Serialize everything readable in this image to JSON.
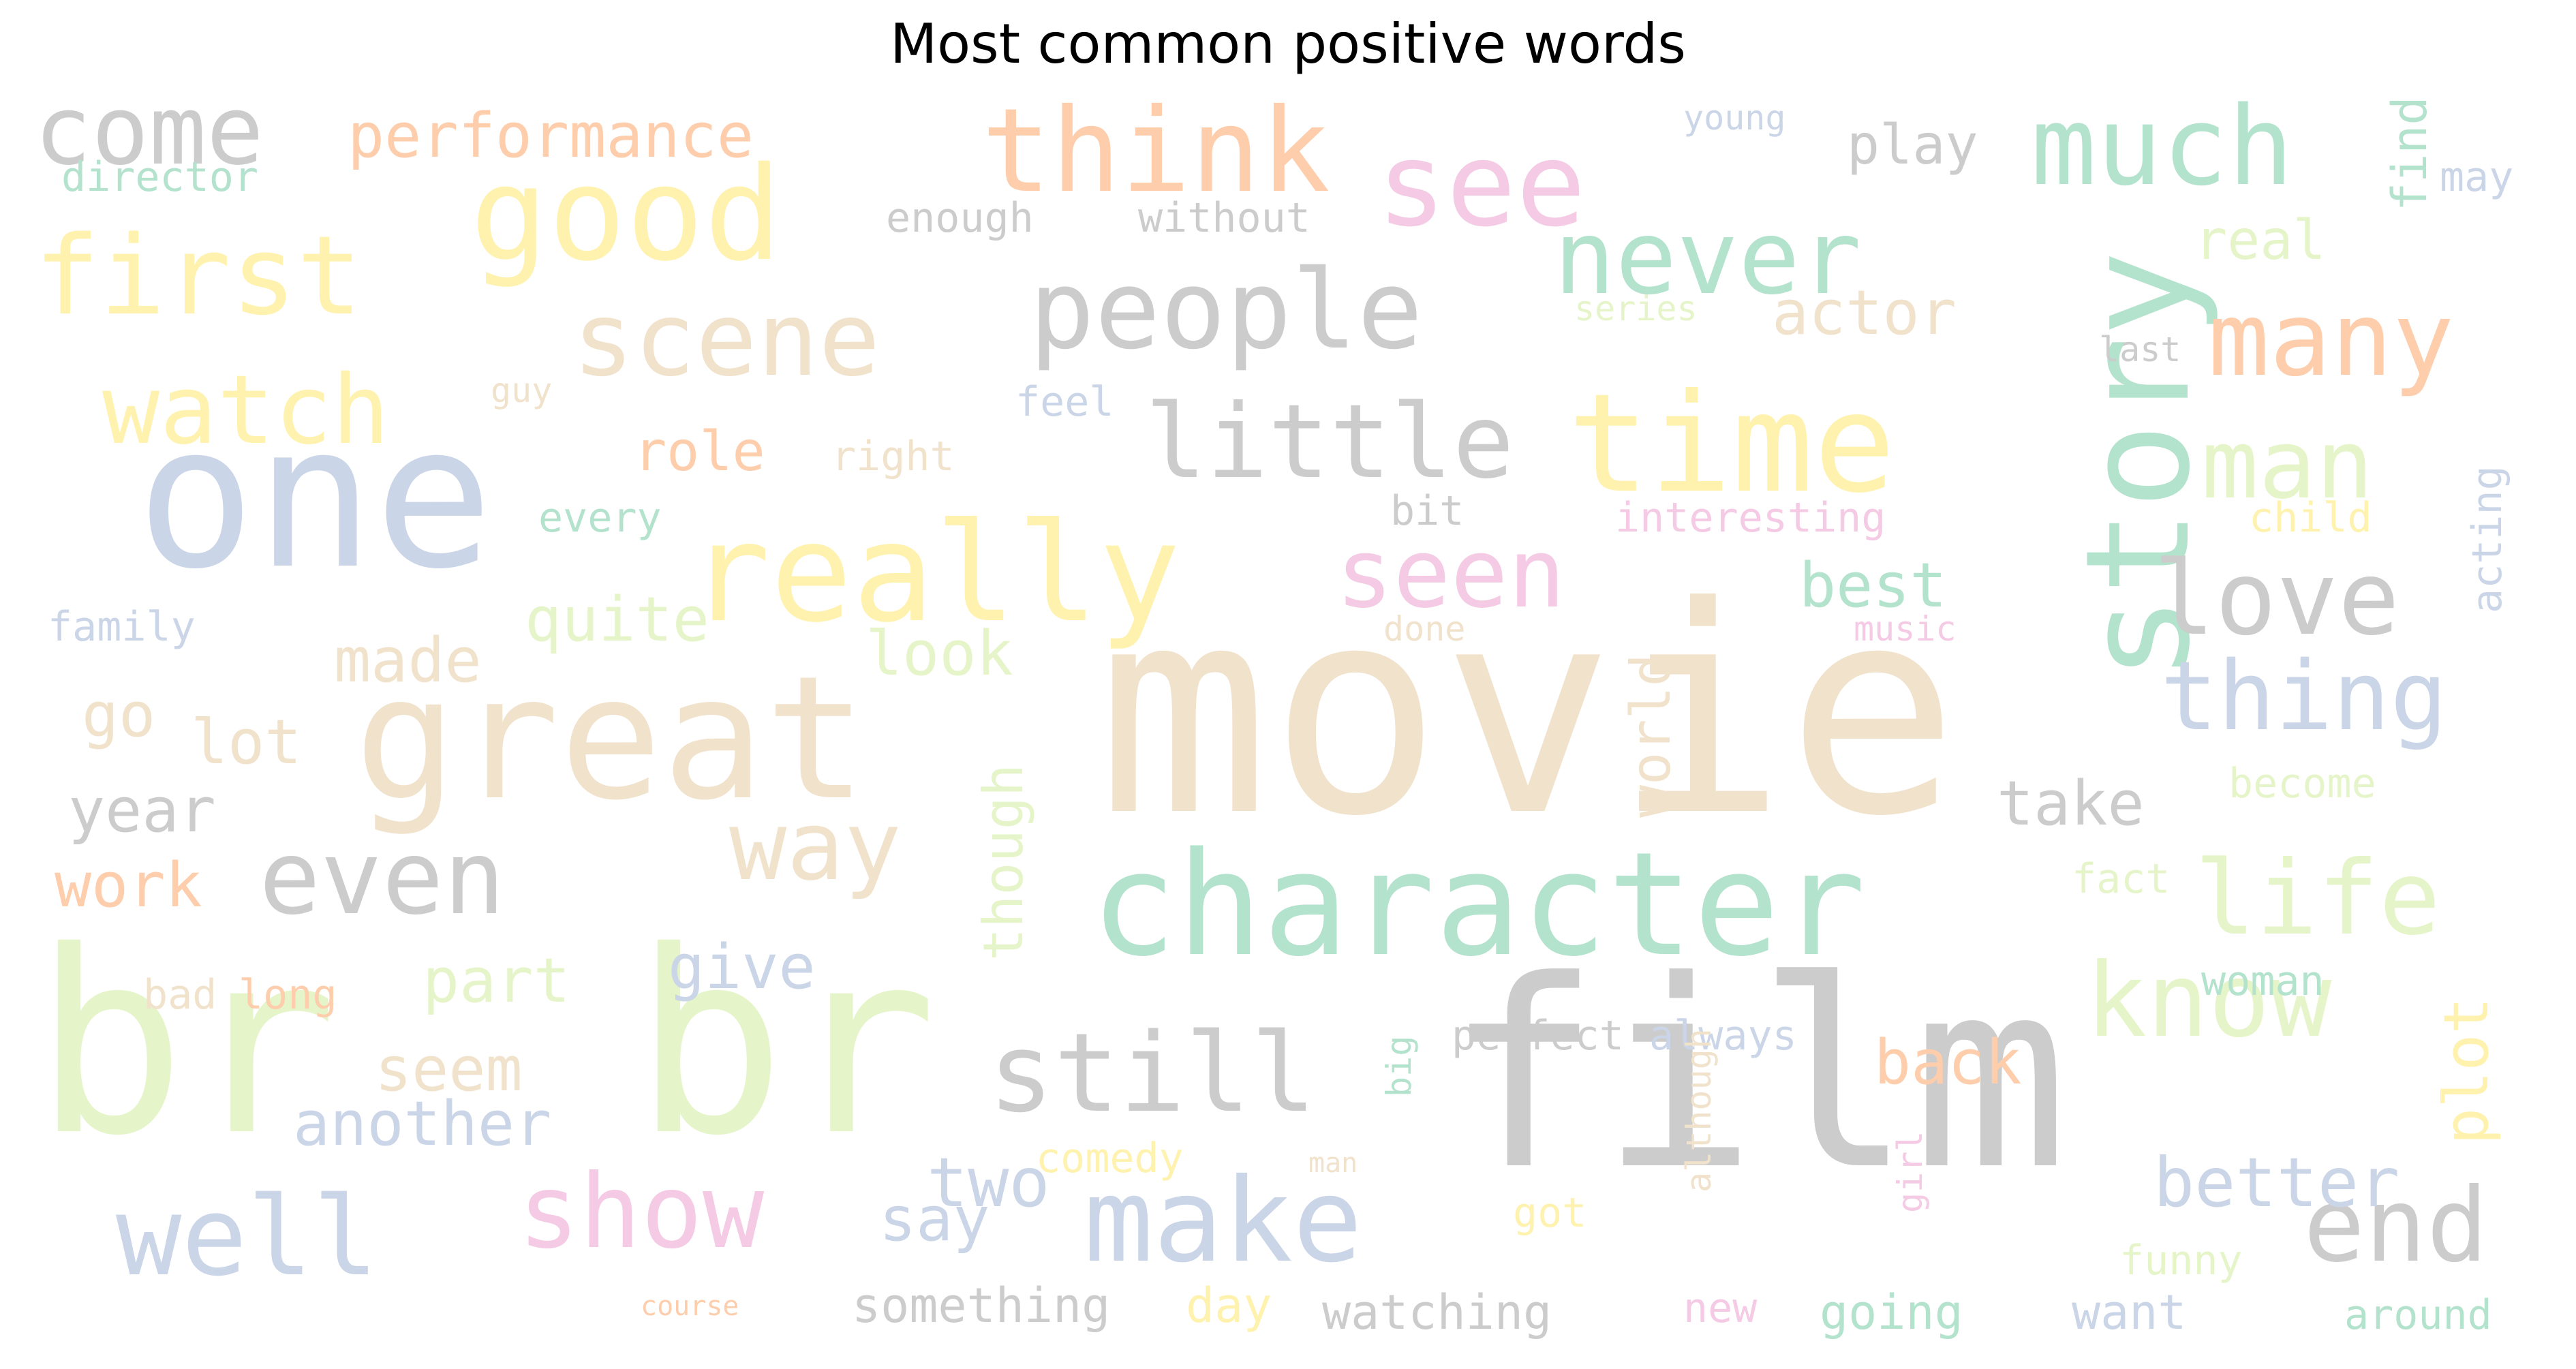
{
  "title": "Most common positive words",
  "palette": {
    "grey": "#cccccc",
    "beige": "#f1e2cc",
    "green": "#b3e2cd",
    "lightgreen": "#e6f5c9",
    "yellow": "#fff2ae",
    "orange": "#fdcdac",
    "pink": "#f4cae4",
    "blue": "#cbd5e8"
  },
  "words": [
    {
      "text": "movie",
      "color": "beige"
    },
    {
      "text": "film",
      "color": "grey"
    },
    {
      "text": "br",
      "color": "lightgreen"
    },
    {
      "text": "br",
      "color": "lightgreen"
    },
    {
      "text": "one",
      "color": "blue"
    },
    {
      "text": "great",
      "color": "beige"
    },
    {
      "text": "character",
      "color": "green"
    },
    {
      "text": "story",
      "color": "green"
    },
    {
      "text": "really",
      "color": "yellow"
    },
    {
      "text": "time",
      "color": "yellow"
    },
    {
      "text": "good",
      "color": "yellow"
    },
    {
      "text": "see",
      "color": "pink"
    },
    {
      "text": "think",
      "color": "orange"
    },
    {
      "text": "people",
      "color": "grey"
    },
    {
      "text": "little",
      "color": "grey"
    },
    {
      "text": "much",
      "color": "green"
    },
    {
      "text": "first",
      "color": "yellow"
    },
    {
      "text": "scene",
      "color": "beige"
    },
    {
      "text": "never",
      "color": "green"
    },
    {
      "text": "many",
      "color": "orange"
    },
    {
      "text": "come",
      "color": "grey"
    },
    {
      "text": "watch",
      "color": "yellow"
    },
    {
      "text": "seen",
      "color": "pink"
    },
    {
      "text": "love",
      "color": "grey"
    },
    {
      "text": "man",
      "color": "lightgreen"
    },
    {
      "text": "thing",
      "color": "blue"
    },
    {
      "text": "life",
      "color": "lightgreen"
    },
    {
      "text": "even",
      "color": "grey"
    },
    {
      "text": "way",
      "color": "beige"
    },
    {
      "text": "still",
      "color": "grey"
    },
    {
      "text": "know",
      "color": "lightgreen"
    },
    {
      "text": "well",
      "color": "blue"
    },
    {
      "text": "show",
      "color": "pink"
    },
    {
      "text": "make",
      "color": "blue"
    },
    {
      "text": "end",
      "color": "grey"
    },
    {
      "text": "performance",
      "color": "orange"
    },
    {
      "text": "play",
      "color": "grey"
    },
    {
      "text": "find",
      "color": "green"
    },
    {
      "text": "director",
      "color": "green"
    },
    {
      "text": "young",
      "color": "blue"
    },
    {
      "text": "may",
      "color": "blue"
    },
    {
      "text": "enough",
      "color": "grey"
    },
    {
      "text": "without",
      "color": "grey"
    },
    {
      "text": "real",
      "color": "lightgreen"
    },
    {
      "text": "actor",
      "color": "beige"
    },
    {
      "text": "series",
      "color": "lightgreen"
    },
    {
      "text": "last",
      "color": "grey"
    },
    {
      "text": "guy",
      "color": "beige"
    },
    {
      "text": "feel",
      "color": "blue"
    },
    {
      "text": "role",
      "color": "orange"
    },
    {
      "text": "right",
      "color": "beige"
    },
    {
      "text": "every",
      "color": "green"
    },
    {
      "text": "bit",
      "color": "grey"
    },
    {
      "text": "interesting",
      "color": "pink"
    },
    {
      "text": "child",
      "color": "yellow"
    },
    {
      "text": "acting",
      "color": "blue"
    },
    {
      "text": "family",
      "color": "blue"
    },
    {
      "text": "made",
      "color": "beige"
    },
    {
      "text": "quite",
      "color": "lightgreen"
    },
    {
      "text": "look",
      "color": "lightgreen"
    },
    {
      "text": "done",
      "color": "beige"
    },
    {
      "text": "best",
      "color": "green"
    },
    {
      "text": "music",
      "color": "pink"
    },
    {
      "text": "world",
      "color": "beige"
    },
    {
      "text": "go",
      "color": "beige"
    },
    {
      "text": "lot",
      "color": "beige"
    },
    {
      "text": "year",
      "color": "grey"
    },
    {
      "text": "though",
      "color": "lightgreen"
    },
    {
      "text": "take",
      "color": "grey"
    },
    {
      "text": "become",
      "color": "lightgreen"
    },
    {
      "text": "work",
      "color": "orange"
    },
    {
      "text": "fact",
      "color": "lightgreen"
    },
    {
      "text": "give",
      "color": "blue"
    },
    {
      "text": "part",
      "color": "lightgreen"
    },
    {
      "text": "bad",
      "color": "beige"
    },
    {
      "text": "long",
      "color": "orange"
    },
    {
      "text": "woman",
      "color": "green"
    },
    {
      "text": "perfect",
      "color": "grey"
    },
    {
      "text": "always",
      "color": "blue"
    },
    {
      "text": "big",
      "color": "green"
    },
    {
      "text": "plot",
      "color": "yellow"
    },
    {
      "text": "seem",
      "color": "beige"
    },
    {
      "text": "back",
      "color": "orange"
    },
    {
      "text": "another",
      "color": "blue"
    },
    {
      "text": "although",
      "color": "beige"
    },
    {
      "text": "comedy",
      "color": "yellow"
    },
    {
      "text": "man",
      "color": "beige"
    },
    {
      "text": "girl",
      "color": "pink"
    },
    {
      "text": "two",
      "color": "blue"
    },
    {
      "text": "say",
      "color": "blue"
    },
    {
      "text": "got",
      "color": "yellow"
    },
    {
      "text": "better",
      "color": "blue"
    },
    {
      "text": "funny",
      "color": "lightgreen"
    },
    {
      "text": "course",
      "color": "orange"
    },
    {
      "text": "something",
      "color": "grey"
    },
    {
      "text": "day",
      "color": "yellow"
    },
    {
      "text": "watching",
      "color": "grey"
    },
    {
      "text": "new",
      "color": "pink"
    },
    {
      "text": "going",
      "color": "green"
    },
    {
      "text": "want",
      "color": "blue"
    },
    {
      "text": "around",
      "color": "green"
    }
  ]
}
